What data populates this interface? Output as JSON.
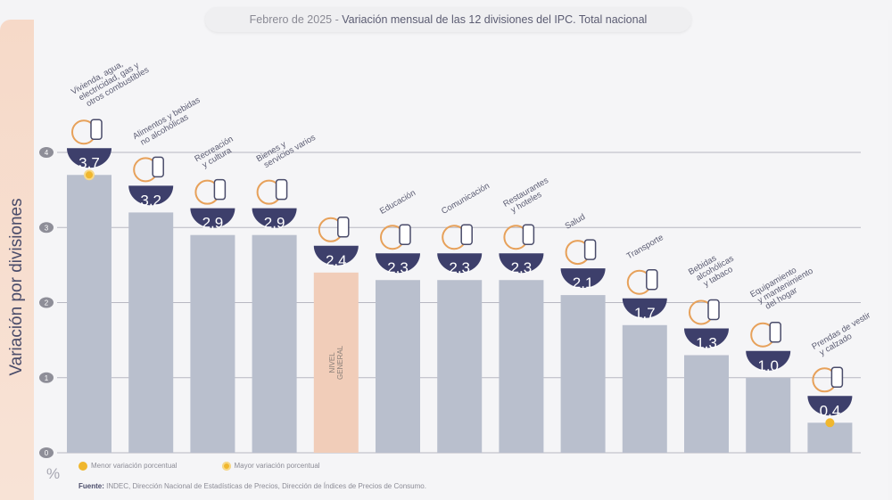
{
  "chart_data": {
    "type": "bar",
    "title_date": "Febrero de 2025",
    "title_main": "Variación mensual de las 12 divisiones del IPC. Total nacional",
    "ylabel": "Variación por divisiones",
    "yunit": "%",
    "ylim": [
      0,
      4
    ],
    "yticks": [
      "0",
      "1",
      "2",
      "3",
      "4"
    ],
    "grid": true,
    "categories": [
      "Vivienda, agua, electricidad, gas y otros combustibles",
      "Alimentos y bebidas no alcohólicas",
      "Recreación y cultura",
      "Bienes y servicios varios",
      "NIVEL GENERAL",
      "Educación",
      "Comunicación",
      "Restaurantes y hoteles",
      "Salud",
      "Transporte",
      "Bebidas alcohólicas y tabaco",
      "Equipamiento y mantenimiento del hogar",
      "Prendas de vestir y calzado"
    ],
    "label_lines": [
      [
        "Vivienda, agua,",
        "electricidad, gas y",
        "otros combustibles"
      ],
      [
        "Alimentos y bebidas",
        "no alcohólicas"
      ],
      [
        "Recreación",
        "y cultura"
      ],
      [
        "Bienes y",
        "servicios varios"
      ],
      [],
      [
        "Educación"
      ],
      [
        "Comunicación"
      ],
      [
        "Restaurantes",
        "y hoteles"
      ],
      [
        "Salud"
      ],
      [
        "Transporte"
      ],
      [
        "Bebidas",
        "alcohólicas",
        "y tabaco"
      ],
      [
        "Equipamiento",
        "y mantenimiento",
        "del hogar"
      ],
      [
        "Prendas de vestir",
        "y calzado"
      ]
    ],
    "values": [
      3.7,
      3.2,
      2.9,
      2.9,
      2.4,
      2.3,
      2.3,
      2.3,
      2.1,
      1.7,
      1.3,
      1.0,
      0.4
    ],
    "value_labels": [
      "3,7",
      "3,2",
      "2,9",
      "2,9",
      "2,4",
      "2,3",
      "2,3",
      "2,3",
      "2,1",
      "1,7",
      "1,3",
      "1,0",
      "0,4"
    ],
    "nivel_general_label": [
      "NIVEL",
      "GENERAL"
    ],
    "highlight": {
      "max_index": 0,
      "min_index": 12
    },
    "colors": {
      "bar": "#b9bfcd",
      "general": "#f1cdb9",
      "badge": "#3d3f6b",
      "marker": "#f0b72e",
      "icon": "#e7a15a"
    }
  },
  "legend": {
    "min": "Menor variación porcentual",
    "max": "Mayor variación porcentual"
  },
  "source": {
    "label": "Fuente:",
    "text": " INDEC, Dirección Nacional de Estadísticas de Precios, Dirección de Índices de Precios de Consumo."
  }
}
